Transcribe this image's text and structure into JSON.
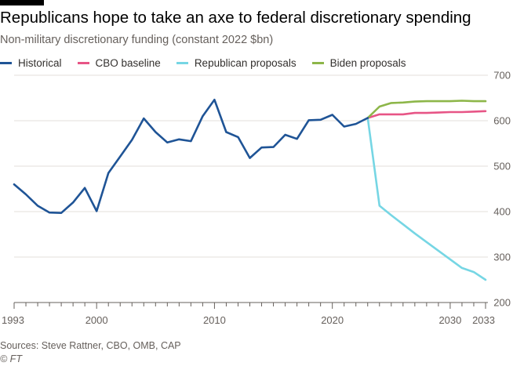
{
  "header": {
    "title": "Republicans hope to take an axe to federal discretionary spending",
    "subtitle": "Non-military discretionary funding (constant 2022 $bn)"
  },
  "footer": {
    "source": "Sources: Steve Rattner, CBO, OMB, CAP",
    "credit": "© FT"
  },
  "chart_data": {
    "type": "line",
    "title": "Republicans hope to take an axe to federal discretionary spending",
    "subtitle": "Non-military discretionary funding (constant 2022 $bn)",
    "xlabel": "",
    "ylabel": "",
    "xlim": [
      1993,
      2033
    ],
    "ylim": [
      200,
      700
    ],
    "x_ticks": [
      1993,
      2000,
      2010,
      2020,
      2030,
      2033
    ],
    "y_ticks": [
      200,
      300,
      400,
      500,
      600,
      700
    ],
    "grid": "horizontal",
    "y_axis_position": "right",
    "legend_position": "top",
    "series": [
      {
        "name": "Historical",
        "color": "#1f5496",
        "x": [
          1993,
          1994,
          1995,
          1996,
          1997,
          1998,
          1999,
          2000,
          2001,
          2002,
          2003,
          2004,
          2005,
          2006,
          2007,
          2008,
          2009,
          2010,
          2011,
          2012,
          2013,
          2014,
          2015,
          2016,
          2017,
          2018,
          2019,
          2020,
          2021,
          2022,
          2023
        ],
        "y": [
          460,
          438,
          413,
          398,
          397,
          420,
          452,
          401,
          485,
          521,
          558,
          605,
          575,
          552,
          559,
          555,
          610,
          646,
          575,
          564,
          518,
          541,
          542,
          569,
          560,
          601,
          602,
          613,
          587,
          593,
          606
        ]
      },
      {
        "name": "CBO baseline",
        "color": "#e75586",
        "x": [
          2023,
          2024,
          2025,
          2026,
          2027,
          2028,
          2029,
          2030,
          2031,
          2032,
          2033
        ],
        "y": [
          606,
          614,
          614,
          614,
          617,
          617,
          618,
          619,
          619,
          620,
          621
        ]
      },
      {
        "name": "Republican proposals",
        "color": "#76d6e4",
        "x": [
          2023,
          2024,
          2025,
          2026,
          2027,
          2028,
          2029,
          2030,
          2031,
          2032,
          2033
        ],
        "y": [
          606,
          413,
          392,
          372,
          352,
          333,
          314,
          295,
          276,
          267,
          250
        ]
      },
      {
        "name": "Biden proposals",
        "color": "#8db649",
        "x": [
          2023,
          2024,
          2025,
          2026,
          2027,
          2028,
          2029,
          2030,
          2031,
          2032,
          2033
        ],
        "y": [
          606,
          631,
          639,
          640,
          642,
          643,
          643,
          643,
          644,
          643,
          643
        ]
      }
    ]
  }
}
